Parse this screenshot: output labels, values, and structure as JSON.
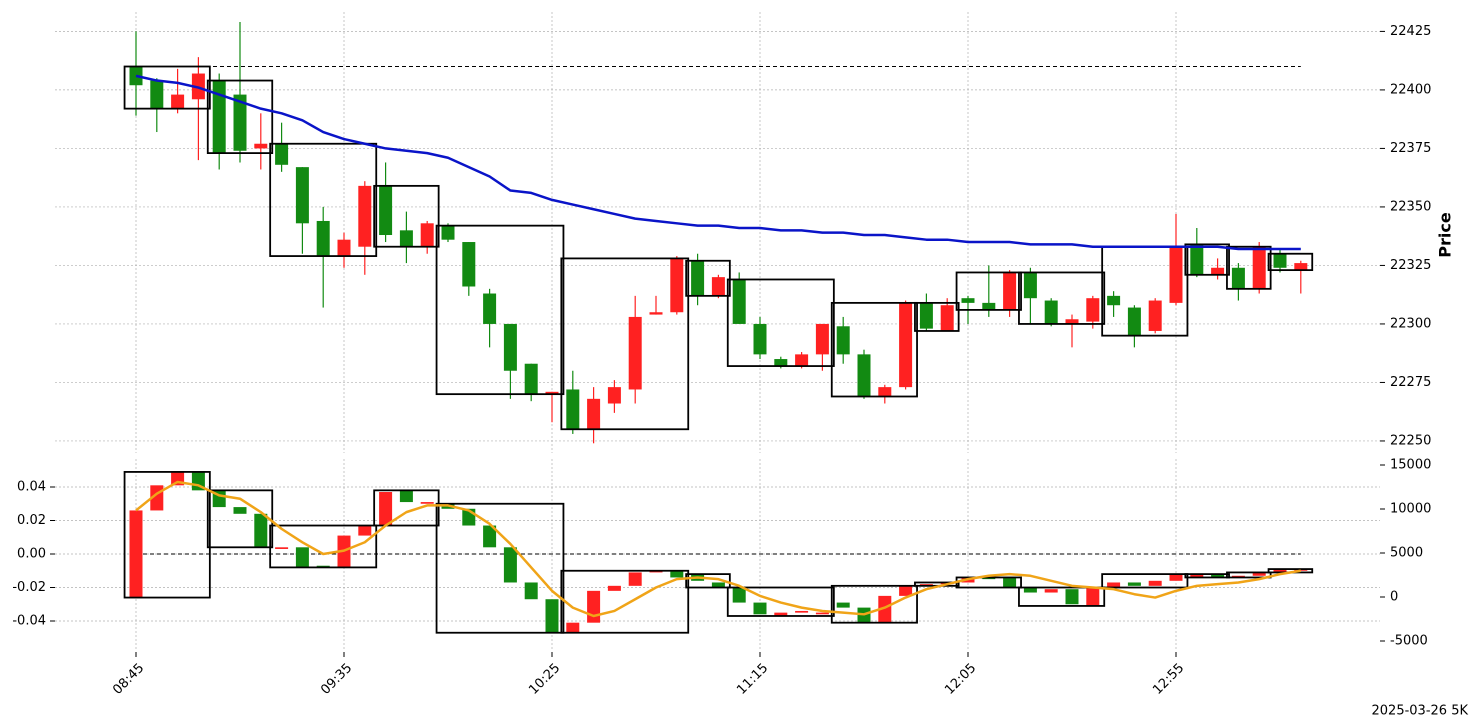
{
  "chart_data": [
    {
      "type": "candlestick",
      "ylabel": "Price",
      "up_color": "#ff2121",
      "down_color": "#128a12",
      "candles": {
        "open": [
          22410,
          22404,
          22392,
          22396,
          22404,
          22398,
          22375,
          22377,
          22367,
          22344,
          22329,
          22333,
          22359,
          22340,
          22333,
          22342,
          22335,
          22313,
          22300,
          22283,
          22270,
          22272,
          22255,
          22266,
          22272,
          22304,
          22305,
          22327,
          22312,
          22319,
          22300,
          22285,
          22282,
          22287,
          22299,
          22287,
          22269,
          22273,
          22309,
          22297,
          22311,
          22309,
          22306,
          22322,
          22310,
          22300,
          22301,
          22312,
          22307,
          22297,
          22309,
          22334,
          22321,
          22324,
          22315,
          22330,
          22323
        ],
        "high": [
          22425,
          22405,
          22409,
          22414,
          22407,
          22429,
          22390,
          22386,
          22367,
          22350,
          22339,
          22361,
          22369,
          22348,
          22344,
          22343,
          22335,
          22315,
          22300,
          22283,
          22271,
          22280,
          22273,
          22276,
          22312,
          22312,
          22329,
          22330,
          22321,
          22322,
          22303,
          22286,
          22288,
          22300,
          22303,
          22289,
          22274,
          22310,
          22313,
          22311,
          22312,
          22325,
          22323,
          22324,
          22311,
          22304,
          22312,
          22314,
          22308,
          22311,
          22347,
          22341,
          22328,
          22326,
          22335,
          22332,
          22327
        ],
        "low": [
          22389,
          22382,
          22390,
          22370,
          22366,
          22369,
          22366,
          22365,
          22330,
          22307,
          22324,
          22321,
          22335,
          22326,
          22330,
          22335,
          22312,
          22290,
          22268,
          22267,
          22258,
          22253,
          22249,
          22262,
          22266,
          22304,
          22304,
          22308,
          22311,
          22300,
          22285,
          22281,
          22281,
          22280,
          22283,
          22268,
          22266,
          22272,
          22297,
          22297,
          22300,
          22303,
          22303,
          22300,
          22299,
          22290,
          22298,
          22303,
          22290,
          22296,
          22308,
          22320,
          22319,
          22310,
          22313,
          22322,
          22313
        ],
        "close": [
          22402,
          22392,
          22398,
          22407,
          22373,
          22374,
          22377,
          22368,
          22343,
          22329,
          22336,
          22359,
          22338,
          22333,
          22343,
          22336,
          22316,
          22300,
          22280,
          22270,
          22271,
          22255,
          22268,
          22273,
          22303,
          22305,
          22328,
          22312,
          22320,
          22300,
          22287,
          22282,
          22287,
          22300,
          22287,
          22269,
          22273,
          22309,
          22298,
          22308,
          22309,
          22306,
          22322,
          22311,
          22300,
          22302,
          22311,
          22308,
          22295,
          22310,
          22333,
          22321,
          22324,
          22315,
          22333,
          22324,
          22326
        ]
      },
      "line": {
        "color": "#0a14c8",
        "values": [
          22406,
          22404,
          22403,
          22401,
          22398,
          22395,
          22392,
          22390,
          22387,
          22382,
          22379,
          22377,
          22375,
          22374,
          22373,
          22371,
          22367,
          22363,
          22357,
          22356,
          22353,
          22351,
          22349,
          22347,
          22345,
          22344,
          22343,
          22342,
          22342,
          22341,
          22341,
          22340,
          22340,
          22339,
          22339,
          22338,
          22338,
          22337,
          22336,
          22336,
          22335,
          22335,
          22335,
          22334,
          22334,
          22334,
          22333,
          22333,
          22333,
          22333,
          22333,
          22333,
          22333,
          22332,
          22332,
          22332,
          22332
        ]
      },
      "boxes": [
        [
          0,
          3
        ],
        [
          4,
          6
        ],
        [
          7,
          11
        ],
        [
          12,
          14
        ],
        [
          15,
          20
        ],
        [
          21,
          26
        ],
        [
          27,
          28
        ],
        [
          29,
          33
        ],
        [
          34,
          37
        ],
        [
          38,
          39
        ],
        [
          40,
          42
        ],
        [
          43,
          46
        ],
        [
          47,
          50
        ],
        [
          51,
          52
        ],
        [
          53,
          54
        ],
        [
          55,
          56
        ]
      ],
      "hline": 22410,
      "ylim": [
        22244,
        22435
      ],
      "yticks": [
        22250,
        22275,
        22300,
        22325,
        22350,
        22375,
        22400,
        22425
      ],
      "grid": true
    },
    {
      "type": "candlestick",
      "up_color": "#ff2121",
      "down_color": "#128a12",
      "categories": [
        "08:45",
        null,
        null,
        null,
        null,
        null,
        null,
        null,
        null,
        null,
        "09:35",
        null,
        null,
        null,
        null,
        null,
        null,
        null,
        null,
        null,
        "10:25",
        null,
        null,
        null,
        null,
        null,
        null,
        null,
        null,
        null,
        "11:15",
        null,
        null,
        null,
        null,
        null,
        null,
        null,
        null,
        null,
        "12:05",
        null,
        null,
        null,
        null,
        null,
        null,
        null,
        null,
        null,
        "12:55",
        null,
        null,
        null,
        null,
        null,
        null
      ],
      "candles": {
        "open": [
          -0.026,
          0.026,
          0.041,
          0.049,
          0.038,
          0.028,
          0.024,
          0.003,
          0.004,
          -0.007,
          -0.008,
          0.011,
          0.017,
          0.038,
          0.03,
          0.03,
          0.027,
          0.017,
          0.004,
          -0.017,
          -0.027,
          -0.047,
          -0.041,
          -0.022,
          -0.019,
          -0.011,
          -0.01,
          -0.012,
          -0.017,
          -0.02,
          -0.029,
          -0.037,
          -0.035,
          -0.036,
          -0.029,
          -0.032,
          -0.041,
          -0.025,
          -0.019,
          -0.018,
          -0.017,
          -0.014,
          -0.014,
          -0.02,
          -0.023,
          -0.021,
          -0.031,
          -0.02,
          -0.017,
          -0.019,
          -0.016,
          -0.014,
          -0.012,
          -0.014,
          -0.013,
          -0.011,
          -0.01
        ],
        "close": [
          0.026,
          0.041,
          0.049,
          0.038,
          0.028,
          0.024,
          0.004,
          0.004,
          -0.008,
          -0.008,
          0.011,
          0.017,
          0.037,
          0.031,
          0.031,
          0.027,
          0.017,
          0.004,
          -0.017,
          -0.027,
          -0.047,
          -0.041,
          -0.022,
          -0.019,
          -0.011,
          -0.01,
          -0.014,
          -0.016,
          -0.02,
          -0.029,
          -0.036,
          -0.035,
          -0.034,
          -0.035,
          -0.032,
          -0.041,
          -0.025,
          -0.019,
          -0.018,
          -0.017,
          -0.014,
          -0.015,
          -0.02,
          -0.023,
          -0.021,
          -0.03,
          -0.02,
          -0.017,
          -0.019,
          -0.016,
          -0.012,
          -0.012,
          -0.014,
          -0.013,
          -0.011,
          -0.009,
          -0.009
        ]
      },
      "line": {
        "color": "#f0a418",
        "values": [
          0.026,
          0.036,
          0.043,
          0.041,
          0.035,
          0.033,
          0.025,
          0.015,
          0.007,
          0,
          0.002,
          0.007,
          0.017,
          0.025,
          0.029,
          0.029,
          0.026,
          0.018,
          0.006,
          -0.008,
          -0.022,
          -0.032,
          -0.037,
          -0.034,
          -0.027,
          -0.02,
          -0.015,
          -0.014,
          -0.015,
          -0.019,
          -0.025,
          -0.029,
          -0.032,
          -0.034,
          -0.035,
          -0.036,
          -0.032,
          -0.026,
          -0.021,
          -0.018,
          -0.015,
          -0.013,
          -0.012,
          -0.013,
          -0.016,
          -0.019,
          -0.02,
          -0.021,
          -0.024,
          -0.026,
          -0.022,
          -0.019,
          -0.018,
          -0.017,
          -0.015,
          -0.012,
          -0.01
        ]
      },
      "boxes": [
        [
          0,
          3
        ],
        [
          4,
          6
        ],
        [
          7,
          11
        ],
        [
          12,
          14
        ],
        [
          15,
          20
        ],
        [
          21,
          26
        ],
        [
          27,
          28
        ],
        [
          29,
          33
        ],
        [
          34,
          37
        ],
        [
          38,
          39
        ],
        [
          40,
          42
        ],
        [
          43,
          46
        ],
        [
          47,
          50
        ],
        [
          51,
          52
        ],
        [
          53,
          54
        ],
        [
          55,
          56
        ]
      ],
      "hline": 0,
      "ylim": [
        -0.0585,
        0.0591
      ],
      "yticks": [
        -0.04,
        -0.02,
        {
          "value": 0,
          "label": "0.00"
        },
        0.02,
        0.04
      ],
      "y2lim": [
        -6250,
        16136
      ],
      "y2ticks": [
        -5000,
        0,
        5000,
        10000,
        15000
      ],
      "grid": true
    }
  ],
  "footer": "2025-03-26 5K"
}
